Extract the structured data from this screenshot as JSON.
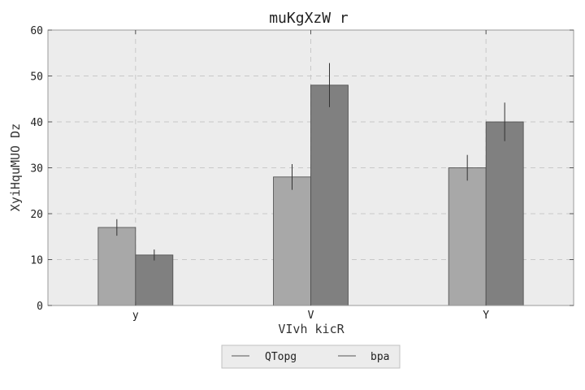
{
  "chart_data": {
    "type": "bar",
    "title": "muKgXzW r",
    "xlabel": "VIvh kicR",
    "ylabel": "XyiHquMUO Dz",
    "categories": [
      "y",
      "V",
      "Y"
    ],
    "ylim": [
      0,
      60
    ],
    "yticks": [
      0,
      10,
      20,
      30,
      40,
      50,
      60
    ],
    "grid": true,
    "legend_position": "bottom-center",
    "series": [
      {
        "name": "QTopg",
        "color": "#a8a8a8",
        "values": [
          17,
          28,
          30
        ],
        "errors": [
          1.8,
          2.8,
          2.8
        ]
      },
      {
        "name": "bpa",
        "color": "#808080",
        "values": [
          11,
          48,
          40
        ],
        "errors": [
          1.2,
          4.8,
          4.2
        ]
      }
    ],
    "background_color": "#ececec"
  }
}
